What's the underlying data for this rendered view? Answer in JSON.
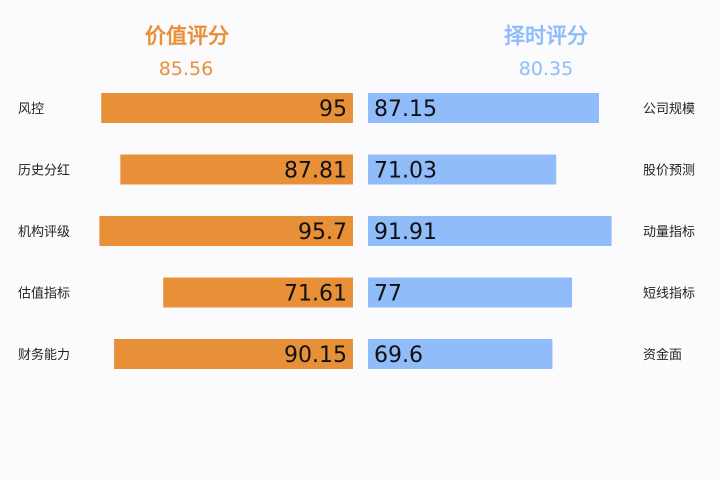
{
  "colors": {
    "left": "#e89038",
    "right": "#90bcfa"
  },
  "left_panel": {
    "title": "价值评分",
    "score": "85.56"
  },
  "right_panel": {
    "title": "择时评分",
    "score": "80.35"
  },
  "chart_data": {
    "type": "bar",
    "left_series": {
      "categories": [
        "风控",
        "历史分红",
        "机构评级",
        "估值指标",
        "财务能力"
      ],
      "values": [
        95,
        87.81,
        95.7,
        71.61,
        90.15
      ],
      "value_labels": [
        "95",
        "87.81",
        "95.7",
        "71.61",
        "90.15"
      ]
    },
    "right_series": {
      "categories": [
        "公司规模",
        "股价预测",
        "动量指标",
        "短线指标",
        "资金面"
      ],
      "values": [
        87.15,
        71.03,
        91.91,
        77,
        69.6
      ],
      "value_labels": [
        "87.15",
        "71.03",
        "91.91",
        "77",
        "69.6"
      ]
    }
  }
}
